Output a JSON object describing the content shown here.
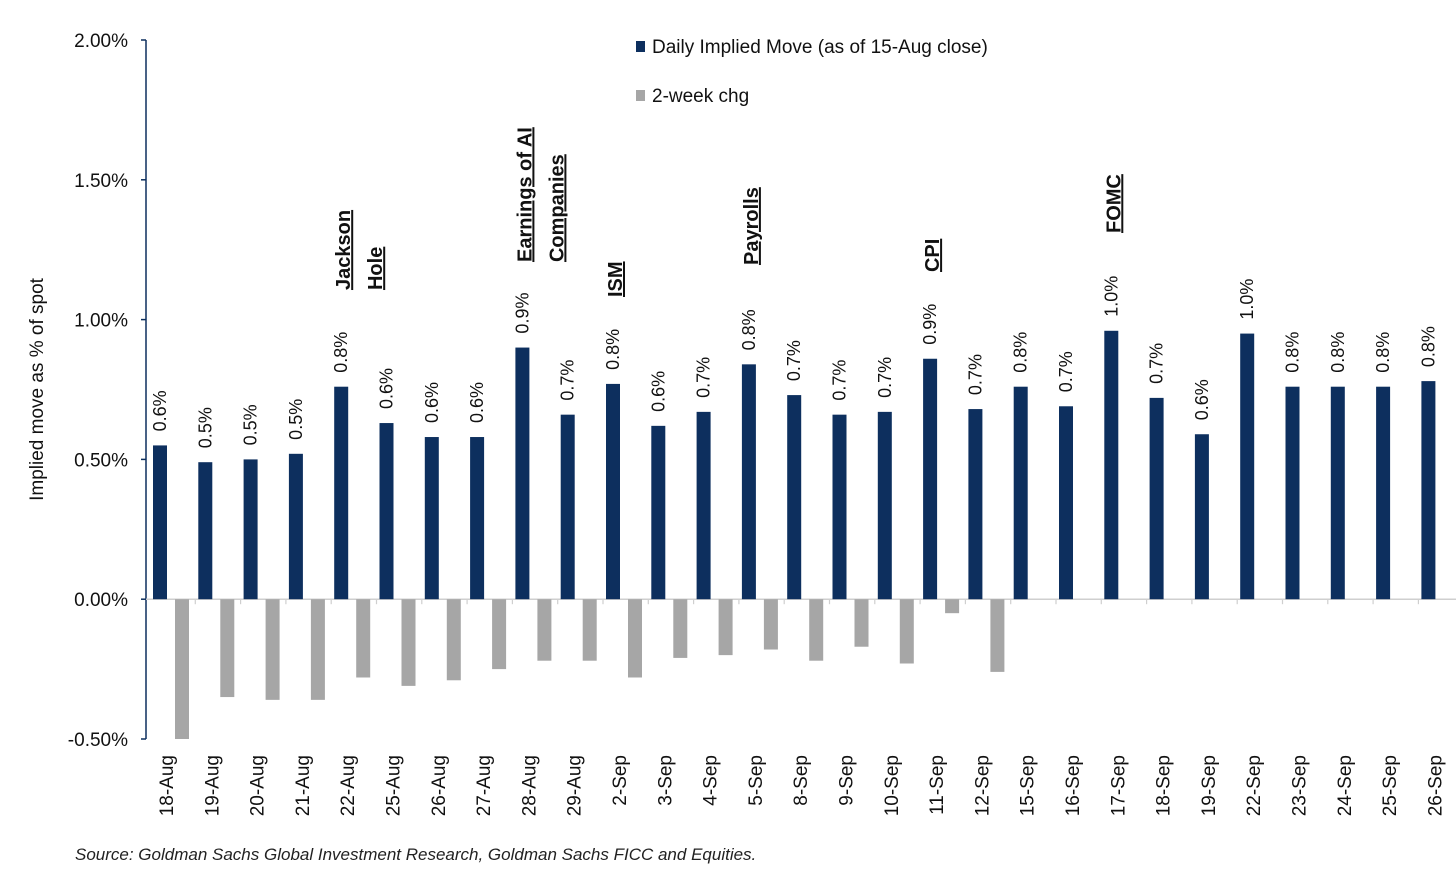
{
  "chart_data": {
    "type": "bar",
    "title": "",
    "xlabel": "",
    "ylabel": "Implied move as % of spot",
    "ylim": [
      -0.5,
      2.0
    ],
    "yticks": [
      -0.5,
      0.0,
      0.5,
      1.0,
      1.5,
      2.0
    ],
    "ytick_labels": [
      "-0.50%",
      "0.00%",
      "0.50%",
      "1.00%",
      "1.50%",
      "2.00%"
    ],
    "grid": false,
    "legend_position": "top-center",
    "categories": [
      "18-Aug",
      "19-Aug",
      "20-Aug",
      "21-Aug",
      "22-Aug",
      "25-Aug",
      "26-Aug",
      "27-Aug",
      "28-Aug",
      "29-Aug",
      "2-Sep",
      "3-Sep",
      "4-Sep",
      "5-Sep",
      "8-Sep",
      "9-Sep",
      "10-Sep",
      "11-Sep",
      "12-Sep",
      "15-Sep",
      "16-Sep",
      "17-Sep",
      "18-Sep",
      "19-Sep",
      "22-Sep",
      "23-Sep",
      "24-Sep",
      "25-Sep",
      "26-Sep"
    ],
    "series": [
      {
        "name": "Daily Implied Move (as of 15-Aug close)",
        "color": "#0d2f5e",
        "values": [
          0.55,
          0.49,
          0.5,
          0.52,
          0.76,
          0.63,
          0.58,
          0.58,
          0.9,
          0.66,
          0.77,
          0.62,
          0.67,
          0.84,
          0.73,
          0.66,
          0.67,
          0.86,
          0.68,
          0.76,
          0.69,
          0.96,
          0.72,
          0.59,
          0.95,
          0.76,
          0.76,
          0.76,
          0.78
        ],
        "data_labels": [
          "0.6%",
          "0.5%",
          "0.5%",
          "0.5%",
          "0.8%",
          "0.6%",
          "0.6%",
          "0.6%",
          "0.9%",
          "0.7%",
          "0.8%",
          "0.6%",
          "0.7%",
          "0.8%",
          "0.7%",
          "0.7%",
          "0.7%",
          "0.9%",
          "0.7%",
          "0.8%",
          "0.7%",
          "1.0%",
          "0.7%",
          "0.6%",
          "1.0%",
          "0.8%",
          "0.8%",
          "0.8%",
          "0.8%"
        ]
      },
      {
        "name": "2-week chg",
        "color": "#a6a6a6",
        "values": [
          -0.5,
          -0.35,
          -0.36,
          -0.36,
          -0.28,
          -0.31,
          -0.29,
          -0.25,
          -0.22,
          -0.22,
          -0.28,
          -0.21,
          -0.2,
          -0.18,
          -0.22,
          -0.17,
          -0.23,
          -0.05,
          -0.26,
          null,
          null,
          null,
          null,
          null,
          null,
          null,
          null,
          null,
          null
        ]
      }
    ],
    "annotations": [
      {
        "category": "22-Aug",
        "lines": [
          "Jackson",
          "Hole"
        ]
      },
      {
        "category": "28-Aug",
        "lines": [
          "Earnings of AI",
          "Companies"
        ]
      },
      {
        "category": "2-Sep",
        "lines": [
          "ISM"
        ]
      },
      {
        "category": "5-Sep",
        "lines": [
          "Payrolls"
        ]
      },
      {
        "category": "11-Sep",
        "lines": [
          "CPI"
        ]
      },
      {
        "category": "17-Sep",
        "lines": [
          "FOMC"
        ]
      }
    ]
  },
  "source": "Source: Goldman Sachs Global Investment Research, Goldman Sachs FICC and Equities."
}
